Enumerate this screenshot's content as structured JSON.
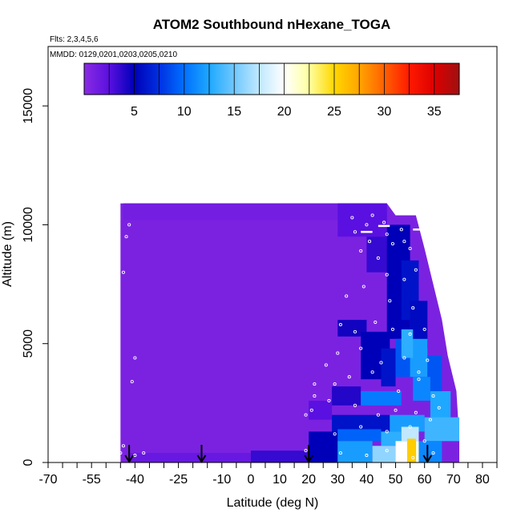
{
  "chart_data": {
    "type": "heatmap",
    "title": "ATOM2 Southbound nHexane_TOGA",
    "subtitle_flights": "Flts: 2,3,4,5,6",
    "subtitle_dates": "MMDD: 0129,0201,0203,0205,0210",
    "xlabel": "Latitude (deg N)",
    "ylabel": "Altitude (m)",
    "xlim": [
      -70,
      85
    ],
    "ylim": [
      0,
      17500
    ],
    "x_tick_labels": [
      "-70",
      "-55",
      "-40",
      "-25",
      "-10",
      "0",
      "10",
      "20",
      "30",
      "40",
      "50",
      "60",
      "70",
      "80"
    ],
    "x_tick_values": [
      -70,
      -55,
      -40,
      -25,
      -10,
      0,
      10,
      20,
      30,
      40,
      50,
      60,
      70,
      80
    ],
    "y_tick_labels": [
      "0",
      "5000",
      "10000",
      "15000"
    ],
    "y_tick_values": [
      0,
      5000,
      10000,
      15000
    ],
    "colorbar": {
      "range": [
        0,
        37.5
      ],
      "tick_labels": [
        "5",
        "10",
        "15",
        "20",
        "25",
        "30",
        "35"
      ],
      "tick_values": [
        5,
        10,
        15,
        20,
        25,
        30,
        35
      ],
      "color_stops": [
        {
          "value": 0,
          "color": "#8a2be2"
        },
        {
          "value": 2.5,
          "color": "#5a10e0"
        },
        {
          "value": 5,
          "color": "#0000b8"
        },
        {
          "value": 7.5,
          "color": "#0030e0"
        },
        {
          "value": 10,
          "color": "#0070ff"
        },
        {
          "value": 12.5,
          "color": "#1ea8ff"
        },
        {
          "value": 15,
          "color": "#70c8ff"
        },
        {
          "value": 17.5,
          "color": "#c0e8ff"
        },
        {
          "value": 20,
          "color": "#ffffff"
        },
        {
          "value": 22.5,
          "color": "#ffffa0"
        },
        {
          "value": 25,
          "color": "#ffd700"
        },
        {
          "value": 27.5,
          "color": "#ffa500"
        },
        {
          "value": 30,
          "color": "#ff6000"
        },
        {
          "value": 32.5,
          "color": "#ff1a00"
        },
        {
          "value": 35,
          "color": "#dd0000"
        },
        {
          "value": 37.5,
          "color": "#a01010"
        }
      ]
    },
    "profile_arrows_lat": [
      -42,
      -17,
      20,
      61
    ],
    "background_value": 0.8,
    "cells": [
      {
        "lat": [
          -44,
          47
        ],
        "alt": [
          10200,
          10900
        ],
        "value": 1.2
      },
      {
        "lat": [
          30,
          47
        ],
        "alt": [
          9500,
          10900
        ],
        "value": 2.5
      },
      {
        "lat": [
          40,
          52
        ],
        "alt": [
          8000,
          9500
        ],
        "value": 3.5
      },
      {
        "lat": [
          47,
          55
        ],
        "alt": [
          5200,
          10000
        ],
        "value": 5.0
      },
      {
        "lat": [
          52,
          58
        ],
        "alt": [
          6000,
          8500
        ],
        "value": 6.0
      },
      {
        "lat": [
          55,
          61
        ],
        "alt": [
          4800,
          6800
        ],
        "value": 5.5
      },
      {
        "lat": [
          30,
          40
        ],
        "alt": [
          5300,
          6000
        ],
        "value": 4.5
      },
      {
        "lat": [
          38,
          48
        ],
        "alt": [
          3500,
          5500
        ],
        "value": 5.0
      },
      {
        "lat": [
          45,
          50
        ],
        "alt": [
          3200,
          4800
        ],
        "value": 6.0
      },
      {
        "lat": [
          50,
          56
        ],
        "alt": [
          3600,
          5200
        ],
        "value": 9.0
      },
      {
        "lat": [
          55,
          61
        ],
        "alt": [
          3600,
          5200
        ],
        "value": 12.0
      },
      {
        "lat": [
          52,
          56
        ],
        "alt": [
          4400,
          5600
        ],
        "value": 13.0
      },
      {
        "lat": [
          61,
          66
        ],
        "alt": [
          3000,
          4500
        ],
        "value": 9.0
      },
      {
        "lat": [
          56,
          62
        ],
        "alt": [
          2600,
          3600
        ],
        "value": 11.0
      },
      {
        "lat": [
          62,
          69
        ],
        "alt": [
          1800,
          3000
        ],
        "value": 12.5
      },
      {
        "lat": [
          28,
          38
        ],
        "alt": [
          2400,
          3200
        ],
        "value": 4.0
      },
      {
        "lat": [
          38,
          52
        ],
        "alt": [
          2400,
          3000
        ],
        "value": 10.5
      },
      {
        "lat": [
          20,
          28
        ],
        "alt": [
          1800,
          2600
        ],
        "value": 2.5
      },
      {
        "lat": [
          28,
          48
        ],
        "alt": [
          1300,
          2000
        ],
        "value": 6.0
      },
      {
        "lat": [
          48,
          60
        ],
        "alt": [
          1300,
          2000
        ],
        "value": 12.0
      },
      {
        "lat": [
          60,
          72
        ],
        "alt": [
          900,
          1900
        ],
        "value": 13.5
      },
      {
        "lat": [
          20,
          30
        ],
        "alt": [
          0,
          1300
        ],
        "value": 5.0
      },
      {
        "lat": [
          30,
          45
        ],
        "alt": [
          900,
          1400
        ],
        "value": 9.5
      },
      {
        "lat": [
          45,
          52
        ],
        "alt": [
          700,
          1300
        ],
        "value": 13.0
      },
      {
        "lat": [
          52,
          58
        ],
        "alt": [
          900,
          1500
        ],
        "value": 17.5
      },
      {
        "lat": [
          58,
          66
        ],
        "alt": [
          0,
          900
        ],
        "value": 11.0
      },
      {
        "lat": [
          30,
          42
        ],
        "alt": [
          0,
          900
        ],
        "value": 12.0
      },
      {
        "lat": [
          42,
          50
        ],
        "alt": [
          0,
          700
        ],
        "value": 16.0
      },
      {
        "lat": [
          50,
          54
        ],
        "alt": [
          0,
          900
        ],
        "value": 20.0
      },
      {
        "lat": [
          54,
          57
        ],
        "alt": [
          0,
          1000
        ],
        "value": 25.5
      },
      {
        "lat": [
          57,
          58
        ],
        "alt": [
          0,
          900
        ],
        "value": 21.0
      },
      {
        "lat": [
          0,
          20
        ],
        "alt": [
          0,
          500
        ],
        "value": 3.5
      },
      {
        "lat": [
          -42,
          0
        ],
        "alt": [
          0,
          400
        ],
        "value": 1.8
      }
    ],
    "sample_points": [
      [
        -42,
        10000
      ],
      [
        -43,
        9500
      ],
      [
        -44,
        8000
      ],
      [
        -40,
        4400
      ],
      [
        -41,
        3400
      ],
      [
        -40,
        300
      ],
      [
        -45,
        400
      ],
      [
        -37,
        400
      ],
      [
        -44,
        700
      ],
      [
        19,
        500
      ],
      [
        19,
        2000
      ],
      [
        21,
        2200
      ],
      [
        22,
        2800
      ],
      [
        22,
        3300
      ],
      [
        35,
        10300
      ],
      [
        36,
        9700
      ],
      [
        40,
        10000
      ],
      [
        42,
        10400
      ],
      [
        46,
        10100
      ],
      [
        47,
        9600
      ],
      [
        49,
        9200
      ],
      [
        52,
        9800
      ],
      [
        53,
        9300
      ],
      [
        55,
        9000
      ],
      [
        38,
        8900
      ],
      [
        41,
        9300
      ],
      [
        44,
        8600
      ],
      [
        47,
        7900
      ],
      [
        53,
        7700
      ],
      [
        57,
        8100
      ],
      [
        33,
        7000
      ],
      [
        39,
        7400
      ],
      [
        48,
        6800
      ],
      [
        56,
        6500
      ],
      [
        31,
        5800
      ],
      [
        36,
        5500
      ],
      [
        43,
        5900
      ],
      [
        49,
        5600
      ],
      [
        55,
        5400
      ],
      [
        60,
        5600
      ],
      [
        26,
        4100
      ],
      [
        30,
        4600
      ],
      [
        38,
        4800
      ],
      [
        45,
        4200
      ],
      [
        53,
        4400
      ],
      [
        61,
        4300
      ],
      [
        29,
        3300
      ],
      [
        34,
        3600
      ],
      [
        42,
        3800
      ],
      [
        51,
        3000
      ],
      [
        58,
        3500
      ],
      [
        63,
        2800
      ],
      [
        27,
        2600
      ],
      [
        36,
        2400
      ],
      [
        44,
        2000
      ],
      [
        50,
        2200
      ],
      [
        57,
        2100
      ],
      [
        62,
        1800
      ],
      [
        29,
        1200
      ],
      [
        38,
        1500
      ],
      [
        47,
        1300
      ],
      [
        55,
        1500
      ],
      [
        60,
        900
      ],
      [
        31,
        400
      ],
      [
        40,
        300
      ],
      [
        47,
        500
      ],
      [
        56,
        200
      ],
      [
        63,
        400
      ],
      [
        58,
        3800
      ],
      [
        65,
        2300
      ]
    ],
    "white_streaks": [
      {
        "lat": [
          38,
          42
        ],
        "alt": 9700
      },
      {
        "lat": [
          44,
          48
        ],
        "alt": 9950
      },
      {
        "lat": [
          56,
          60
        ],
        "alt": 9800
      }
    ]
  }
}
